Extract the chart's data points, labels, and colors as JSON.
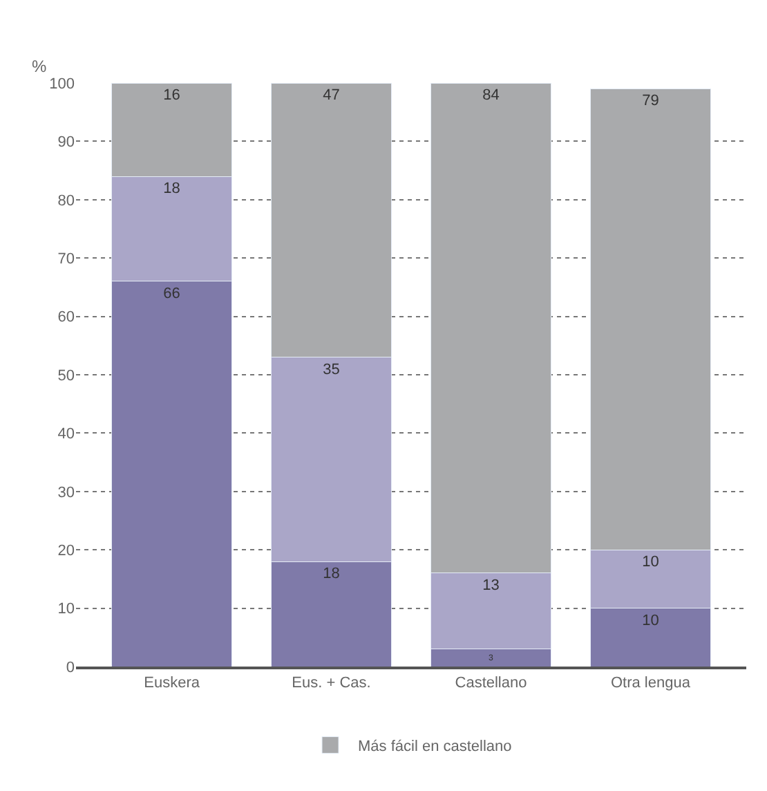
{
  "chart_data": {
    "type": "bar",
    "stacked": true,
    "ylabel": "%",
    "categories": [
      "Euskera",
      "Eus. + Cas.",
      "Castellano",
      "Otra lengua"
    ],
    "series": [
      {
        "color": "#7f7aa9",
        "values": [
          66,
          18,
          3,
          10
        ]
      },
      {
        "color": "#aaa6c8",
        "values": [
          18,
          35,
          13,
          10
        ]
      },
      {
        "name": "Más fácil en castellano",
        "color": "#a9aaac",
        "values": [
          16,
          47,
          84,
          79
        ]
      }
    ],
    "ylim": [
      0,
      100
    ],
    "yticks": [
      0,
      10,
      20,
      30,
      40,
      50,
      60,
      70,
      80,
      90,
      100
    ],
    "grid": "y",
    "data_labels": true,
    "legend": "bottom"
  }
}
